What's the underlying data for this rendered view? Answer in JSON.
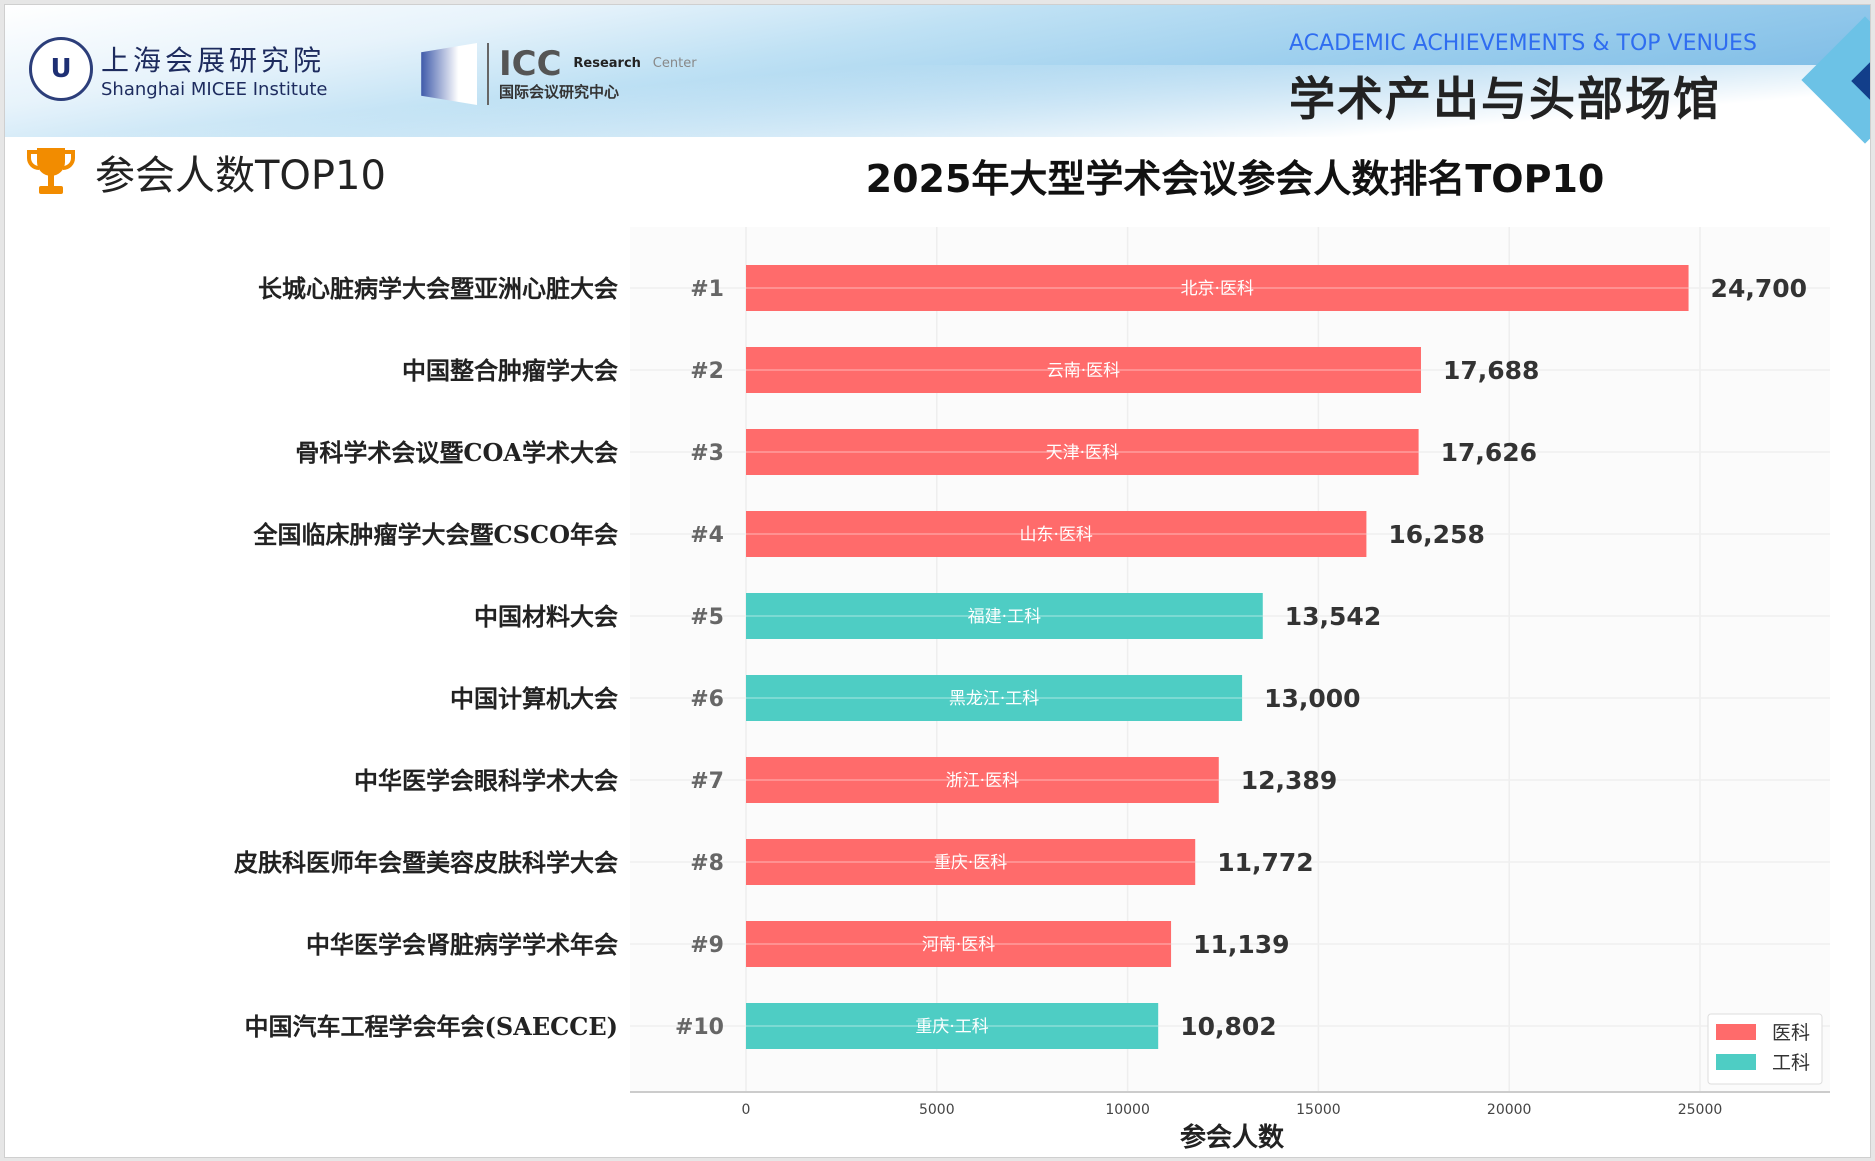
{
  "header": {
    "institute_cn": "上海会展研究院",
    "institute_en": "Shanghai MICEE Institute",
    "icc_name": "ICC",
    "icc_sub1": "Research",
    "icc_sub2": "Center",
    "icc_cn": "国际会议研究中心",
    "section_en": "ACADEMIC ACHIEVEMENTS & TOP VENUES",
    "section_cn": "学术产出与头部场馆"
  },
  "heading": {
    "label": "参会人数TOP10",
    "icon": "trophy-icon"
  },
  "colors": {
    "medical": "#ff6b6b",
    "engineering": "#4ecdc4",
    "accent": "#f28c00"
  },
  "chart_data": {
    "type": "bar",
    "orientation": "horizontal",
    "title": "2025年大型学术会议参会人数排名TOP10",
    "xlabel": "参会人数",
    "ylabel": "",
    "xlim": [
      0,
      28000
    ],
    "xticks": [
      "0",
      "5000",
      "10000",
      "15000",
      "20000",
      "25000"
    ],
    "grid": true,
    "legend_position": "bottom-right",
    "legend": [
      {
        "name": "医科",
        "color": "#ff6b6b"
      },
      {
        "name": "工科",
        "color": "#4ecdc4"
      }
    ],
    "categories": [
      "长城心脏病学大会暨亚洲心脏大会",
      "中国整合肿瘤学大会",
      "骨科学术会议暨COA学术大会",
      "全国临床肿瘤学大会暨CSCO年会",
      "中国材料大会",
      "中国计算机大会",
      "中华医学会眼科学术大会",
      "皮肤科医师年会暨美容皮肤科学大会",
      "中华医学会肾脏病学学术年会",
      "中国汽车工程学会年会(SAECCE)"
    ],
    "ranks": [
      "#1",
      "#2",
      "#3",
      "#4",
      "#5",
      "#6",
      "#7",
      "#8",
      "#9",
      "#10"
    ],
    "values": [
      24700,
      17688,
      17626,
      16258,
      13542,
      13000,
      12389,
      11772,
      11139,
      10802
    ],
    "value_labels": [
      "24,700",
      "17,688",
      "17,626",
      "16,258",
      "13,542",
      "13,000",
      "12,389",
      "11,772",
      "11,139",
      "10,802"
    ],
    "bar_labels": [
      "北京·医科",
      "云南·医科",
      "天津·医科",
      "山东·医科",
      "福建·工科",
      "黑龙江·工科",
      "浙江·医科",
      "重庆·医科",
      "河南·医科",
      "重庆·工科"
    ],
    "series_type": [
      "医科",
      "医科",
      "医科",
      "医科",
      "工科",
      "工科",
      "医科",
      "医科",
      "医科",
      "工科"
    ]
  }
}
